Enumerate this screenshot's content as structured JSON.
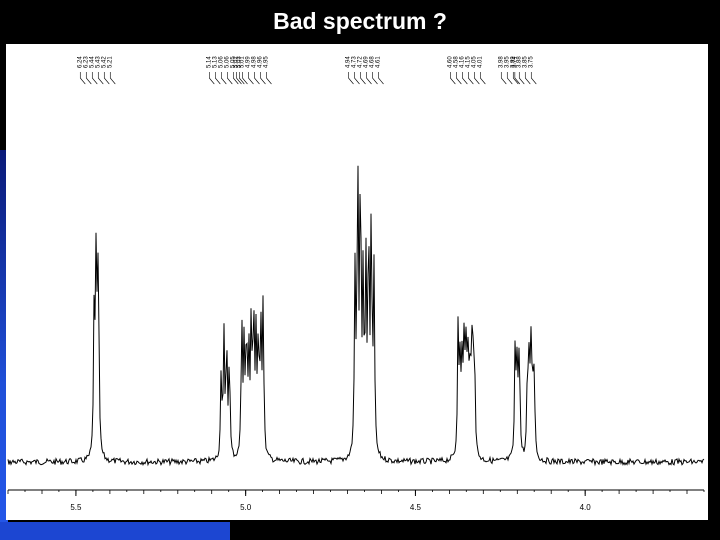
{
  "slide": {
    "title": "Bad spectrum ?"
  },
  "chart_data": {
    "type": "line",
    "xlim": [
      5.7,
      3.65
    ],
    "ticks": [
      {
        "value": 5.5,
        "label": "5.5"
      },
      {
        "value": 5.0,
        "label": "5.0"
      },
      {
        "value": 4.5,
        "label": "4.5"
      },
      {
        "value": 4.0,
        "label": "4.0"
      }
    ],
    "peak_labels": [
      "6.24",
      "6.23",
      "5.44",
      "5.43",
      "5.42",
      "5.21",
      "5.14",
      "5.13",
      "5.06",
      "5.06",
      "5.05",
      "5.03",
      "5.02",
      "5.01",
      "4.99",
      "4.98",
      "4.96",
      "4.95",
      "4.94",
      "4.73",
      "4.72",
      "4.69",
      "4.68",
      "4.61",
      "4.60",
      "4.58",
      "4.16",
      "4.15",
      "4.05",
      "4.01",
      "3.98",
      "3.95",
      "3.89",
      "3.88",
      "3.85",
      "3.75",
      "3.74"
    ],
    "multiplets": [
      {
        "center": 5.44,
        "height": 0.88,
        "lines": 3,
        "spacing": 0.006
      },
      {
        "center": 5.06,
        "height": 0.52,
        "lines": 4,
        "spacing": 0.008
      },
      {
        "center": 4.98,
        "height": 0.55,
        "lines": 10,
        "spacing": 0.007
      },
      {
        "center": 4.65,
        "height": 1.0,
        "lines": 8,
        "spacing": 0.008
      },
      {
        "center": 4.35,
        "height": 0.48,
        "lines": 9,
        "spacing": 0.006
      },
      {
        "center": 4.2,
        "height": 0.5,
        "lines": 3,
        "spacing": 0.006
      },
      {
        "center": 4.16,
        "height": 0.4,
        "lines": 5,
        "spacing": 0.005
      }
    ],
    "xlabel": "",
    "ylabel": "",
    "grid": false
  }
}
